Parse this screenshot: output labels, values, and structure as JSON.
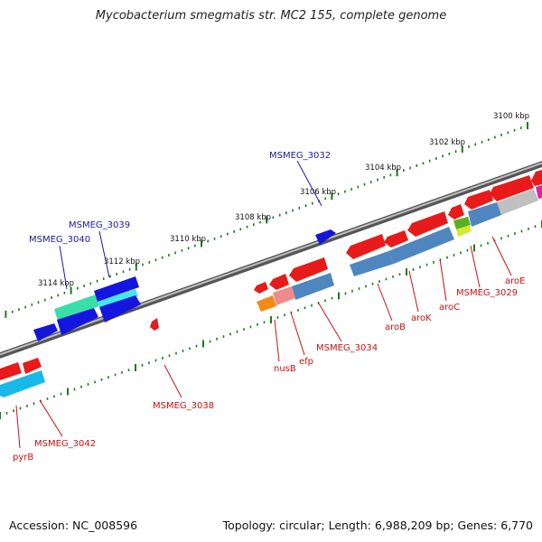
{
  "title": "Mycobacterium smegmatis str. MC2 155, complete genome",
  "footer": {
    "accession": "Accession: NC_008596",
    "summary": "Topology: circular; Length: 6,988,209 bp; Genes: 6,770"
  },
  "colors": {
    "backbone": "#888888",
    "tick": "#1e7a1e",
    "forward_label": "#1a1aa8",
    "reverse_label": "#cc1111",
    "leader": "#cc1111",
    "leader_forward": "#1a1aa8"
  },
  "scale_ticks": [
    {
      "label": "3100 kbp",
      "kbp": 3100
    },
    {
      "label": "3102 kbp",
      "kbp": 3102
    },
    {
      "label": "3104 kbp",
      "kbp": 3104
    },
    {
      "label": "3106 kbp",
      "kbp": 3106
    },
    {
      "label": "3108 kbp",
      "kbp": 3108
    },
    {
      "label": "3110 kbp",
      "kbp": 3110
    },
    {
      "label": "3112 kbp",
      "kbp": 3112
    },
    {
      "label": "3114 kbp",
      "kbp": 3114
    }
  ],
  "forward_gene_labels": [
    {
      "name": "MSMEG_3032"
    },
    {
      "name": "MSMEG_3039"
    },
    {
      "name": "MSMEG_3040"
    }
  ],
  "reverse_gene_labels": [
    {
      "name": "aroE"
    },
    {
      "name": "MSMEG_3029"
    },
    {
      "name": "aroC"
    },
    {
      "name": "aroK"
    },
    {
      "name": "aroB"
    },
    {
      "name": "MSMEG_3034"
    },
    {
      "name": "efp"
    },
    {
      "name": "nusB"
    },
    {
      "name": "MSMEG_3038"
    },
    {
      "name": "MSMEG_3042"
    },
    {
      "name": "pyrB"
    }
  ]
}
